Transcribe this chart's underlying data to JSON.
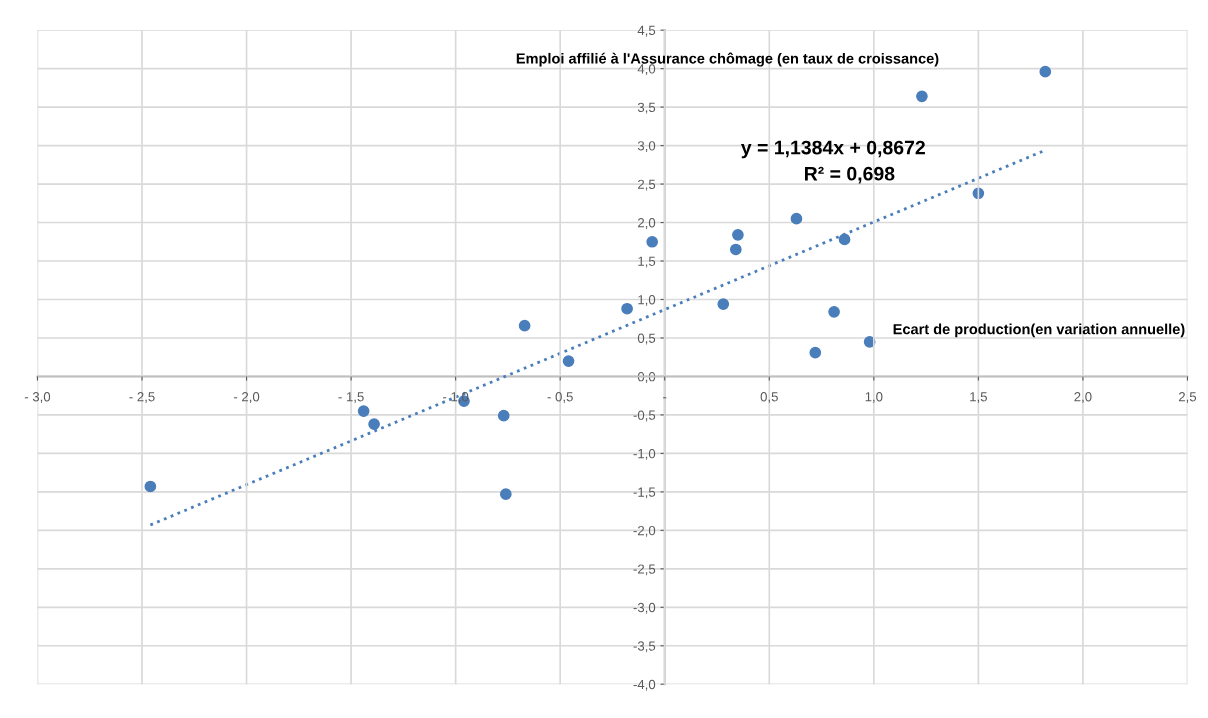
{
  "chart_data": {
    "type": "scatter",
    "xlabel": "Ecart de production(en variation annuelle)",
    "ylabel": "Emploi affilié à l'Assurance chômage (en taux de croissance)",
    "annotations": [
      "y = 1,1384x + 0,8672",
      "R² = 0,698"
    ],
    "series": [
      {
        "color": "#4a7ebb",
        "marker": "circle",
        "x": [
          -2.46,
          -1.44,
          -1.39,
          -0.96,
          -0.77,
          -0.76,
          -0.67,
          -0.46,
          -0.18,
          -0.06,
          0.28,
          0.34,
          0.35,
          0.63,
          0.72,
          0.81,
          0.86,
          0.98,
          1.23,
          1.5,
          1.82
        ],
        "values": [
          -1.43,
          -0.45,
          -0.62,
          -0.32,
          -0.51,
          -1.53,
          0.66,
          0.2,
          0.88,
          1.75,
          0.94,
          1.65,
          1.84,
          2.05,
          0.31,
          0.84,
          1.78,
          0.45,
          3.64,
          2.38,
          3.96
        ]
      },
      {
        "type": "line",
        "color": "#4a7ebb",
        "line_style": "dotted",
        "x": [
          -2.46,
          1.82
        ],
        "values": [
          -1.93,
          2.94
        ]
      }
    ],
    "xlim": [
      -3.0,
      2.5
    ],
    "xticks": [
      {
        "value": -3.0,
        "label": "- 3,0"
      },
      {
        "value": -2.5,
        "label": "- 2,5"
      },
      {
        "value": -2.0,
        "label": "- 2,0"
      },
      {
        "value": -1.5,
        "label": "- 1,5"
      },
      {
        "value": -1.0,
        "label": "- 1,0"
      },
      {
        "value": -0.5,
        "label": "- 0,5"
      },
      {
        "value": 0,
        "label": "-"
      },
      {
        "value": 0.5,
        "label": "0,5"
      },
      {
        "value": 1.0,
        "label": "1,0"
      },
      {
        "value": 1.5,
        "label": "1,5"
      },
      {
        "value": 2.0,
        "label": "2,0"
      },
      {
        "value": 2.5,
        "label": "2,5"
      }
    ],
    "ylim": [
      -4.0,
      4.5
    ],
    "yticks": [
      {
        "value": -4.0,
        "label": "-4,0"
      },
      {
        "value": -3.5,
        "label": "-3,5"
      },
      {
        "value": -3.0,
        "label": "-3,0"
      },
      {
        "value": -2.5,
        "label": "-2,5"
      },
      {
        "value": -2.0,
        "label": "-2,0"
      },
      {
        "value": -1.5,
        "label": "-1,5"
      },
      {
        "value": -1.0,
        "label": "-1,0"
      },
      {
        "value": -0.5,
        "label": "-0,5"
      },
      {
        "value": 0,
        "label": "0,0"
      },
      {
        "value": 0.5,
        "label": "0,5"
      },
      {
        "value": 1.0,
        "label": "1,0"
      },
      {
        "value": 1.5,
        "label": "1,5"
      },
      {
        "value": 2.0,
        "label": "2,0"
      },
      {
        "value": 2.5,
        "label": "2,5"
      },
      {
        "value": 3.0,
        "label": "3,0"
      },
      {
        "value": 3.5,
        "label": "3,5"
      },
      {
        "value": 4.0,
        "label": "4,0"
      },
      {
        "value": 4.5,
        "label": "4,5"
      }
    ],
    "grid": true
  }
}
